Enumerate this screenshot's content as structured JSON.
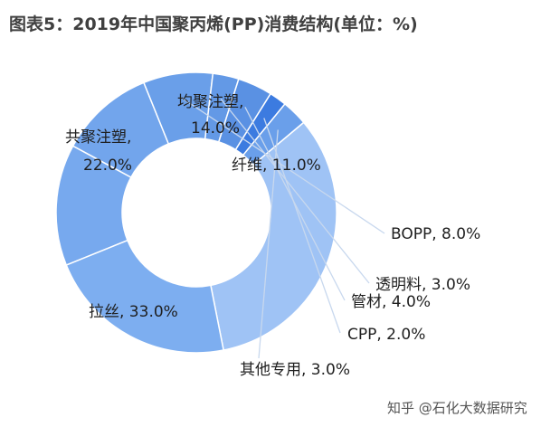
{
  "chart_data": {
    "type": "pie",
    "variant": "donut",
    "title": "图表5：2019年中国聚丙烯(PP)消费结构(单位：%)",
    "unit": "%",
    "slices": [
      {
        "name": "均聚注塑",
        "value": 14.0,
        "label": "均聚注塑,",
        "value_label": "14.0%",
        "color": "#77A9EE"
      },
      {
        "name": "纤维",
        "value": 11.0,
        "label": "纤维, 11.0%",
        "color": "#72A5EC"
      },
      {
        "name": "BOPP",
        "value": 8.0,
        "label": "BOPP, 8.0%",
        "color": "#6A9FE9"
      },
      {
        "name": "透明料",
        "value": 3.0,
        "label": "透明料, 3.0%",
        "color": "#6399E6"
      },
      {
        "name": "管材",
        "value": 4.0,
        "label": "管材, 4.0%",
        "color": "#5A91E3"
      },
      {
        "name": "CPP",
        "value": 2.0,
        "label": "CPP, 2.0%",
        "color": "#3C7BE0"
      },
      {
        "name": "其他专用",
        "value": 3.0,
        "label": "其他专用, 3.0%",
        "color": "#6A9FEA"
      },
      {
        "name": "拉丝",
        "value": 33.0,
        "label": "拉丝, 33.0%",
        "color": "#9FC3F5"
      },
      {
        "name": "共聚注塑",
        "value": 22.0,
        "label": "共聚注塑,",
        "value_label": "22.0%",
        "color": "#7DAEF0"
      }
    ]
  },
  "watermark": "知乎 @石化大数据研究"
}
